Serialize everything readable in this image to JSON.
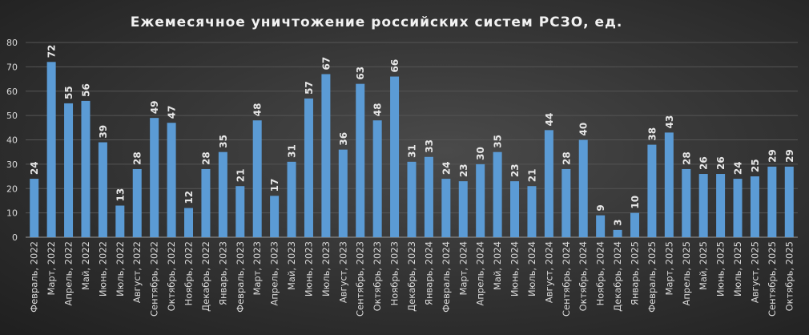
{
  "chart_data": {
    "type": "bar",
    "title": "Ежемесячное  уничтожение  российских  систем РСЗО,  ед.",
    "xlabel": "",
    "ylabel": "",
    "ylim": [
      0,
      80
    ],
    "yticks": [
      0,
      10,
      20,
      30,
      40,
      50,
      60,
      70,
      80
    ],
    "grid": true,
    "legend": "none",
    "bar_color": "#5b9bd5",
    "categories": [
      "Февраль, 2022",
      "Март, 2022",
      "Апрель, 2022",
      "Май, 2022",
      "Июнь, 2022",
      "Июль, 2022",
      "Август, 2022",
      "Сентябрь, 2022",
      "Октябрь, 2022",
      "Ноябрь, 2022",
      "Декабрь, 2022",
      "Январь, 2023",
      "Февраль, 2023",
      "Март, 2023",
      "Апрель, 2023",
      "Май, 2023",
      "Июнь, 2023",
      "Июль, 2023",
      "Август, 2023",
      "Сентябрь, 2023",
      "Октябрь, 2023",
      "Ноябрь, 2023",
      "Декабрь, 2023",
      "Январь, 2024",
      "Февраль, 2024",
      "Март, 2024",
      "Апрель, 2024",
      "Май, 2024",
      "Июнь, 2024",
      "Июль, 2024",
      "Август, 2024",
      "Сентябрь, 2024",
      "Октябрь, 2024",
      "Ноябрь, 2024",
      "Декабрь, 2024",
      "Январь, 2025",
      "Февраль, 2025",
      "Март, 2025",
      "Апрель, 2025",
      "Май, 2025",
      "Июнь, 2025",
      "Июль, 2025",
      "Август, 2025",
      "Сентябрь, 2025",
      "Октябрь, 2025"
    ],
    "values": [
      24,
      72,
      55,
      56,
      39,
      13,
      28,
      49,
      47,
      12,
      28,
      35,
      21,
      48,
      17,
      31,
      57,
      67,
      36,
      63,
      48,
      66,
      31,
      33,
      24,
      23,
      30,
      35,
      23,
      21,
      44,
      28,
      40,
      9,
      3,
      10,
      38,
      43,
      28,
      26,
      26,
      24,
      25,
      29,
      29
    ]
  }
}
